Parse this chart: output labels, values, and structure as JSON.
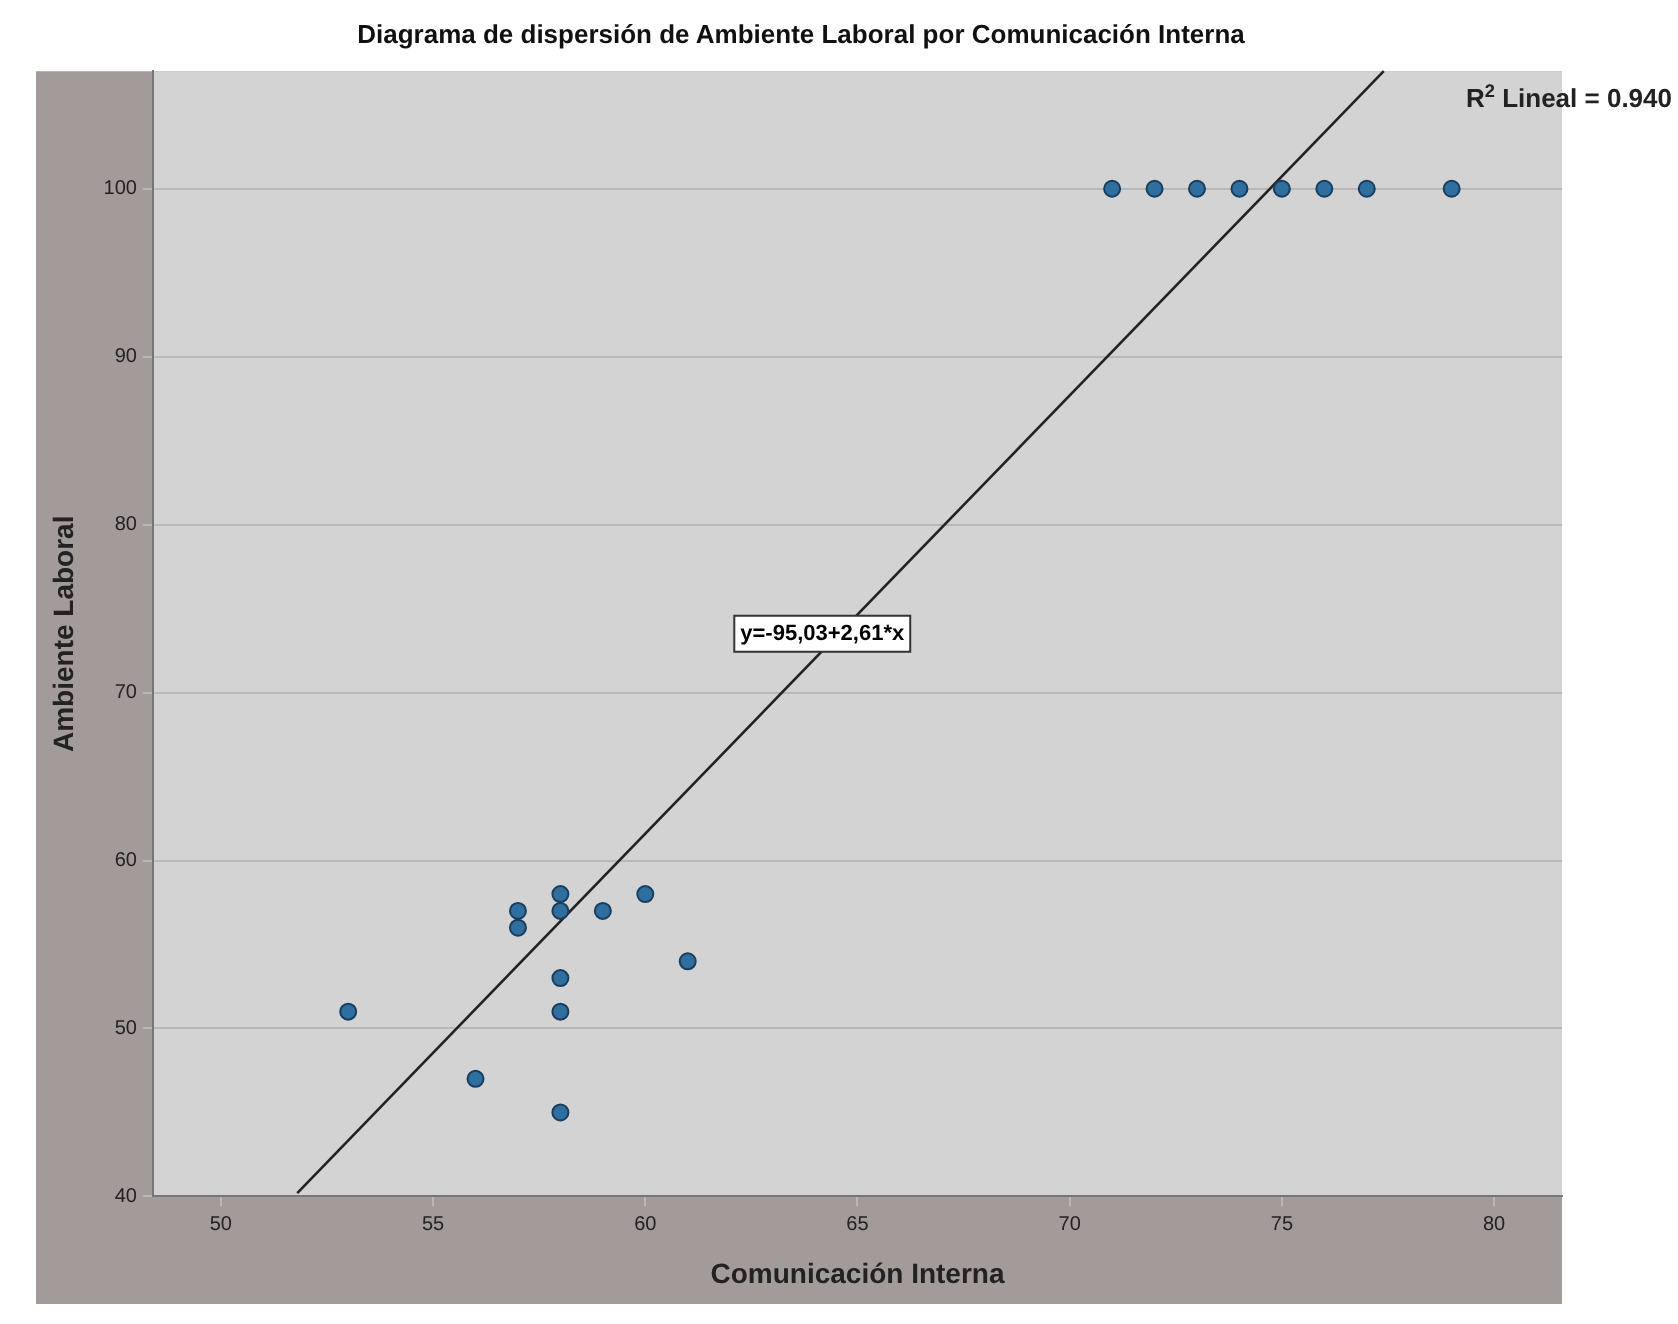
{
  "chart_data": {
    "type": "scatter",
    "title": "Diagrama de dispersión de Ambiente Laboral por Comunicación Interna",
    "xlabel": "Comunicación Interna",
    "ylabel": "Ambiente Laboral",
    "xlim": [
      48.4,
      81.6
    ],
    "xticks": [
      50,
      55,
      60,
      65,
      70,
      75,
      80
    ],
    "ylim": [
      40,
      107
    ],
    "yticks": [
      40,
      50,
      60,
      70,
      80,
      90,
      100
    ],
    "grid": "y",
    "legend": false,
    "marker": "circle",
    "series": [
      {
        "color": "#2f6f9f",
        "x": [
          53,
          56,
          57,
          57,
          58,
          58,
          58,
          58,
          58,
          59,
          60,
          61,
          71,
          72,
          73,
          74,
          75,
          76,
          77,
          79
        ],
        "values": [
          51,
          47,
          57,
          56,
          58,
          57,
          53,
          51,
          45,
          57,
          58,
          54,
          100,
          100,
          100,
          100,
          100,
          100,
          100,
          100
        ]
      },
      {
        "type": "line",
        "color": "#222222",
        "x": [
          51.8,
          77.4
        ],
        "values": [
          40.2,
          107
        ],
        "marker": "none",
        "line_style": "solid"
      }
    ],
    "annotations": [
      "y=-95,03+2,61*x",
      "R$^{2}$ Lineal = 0.940"
    ]
  }
}
